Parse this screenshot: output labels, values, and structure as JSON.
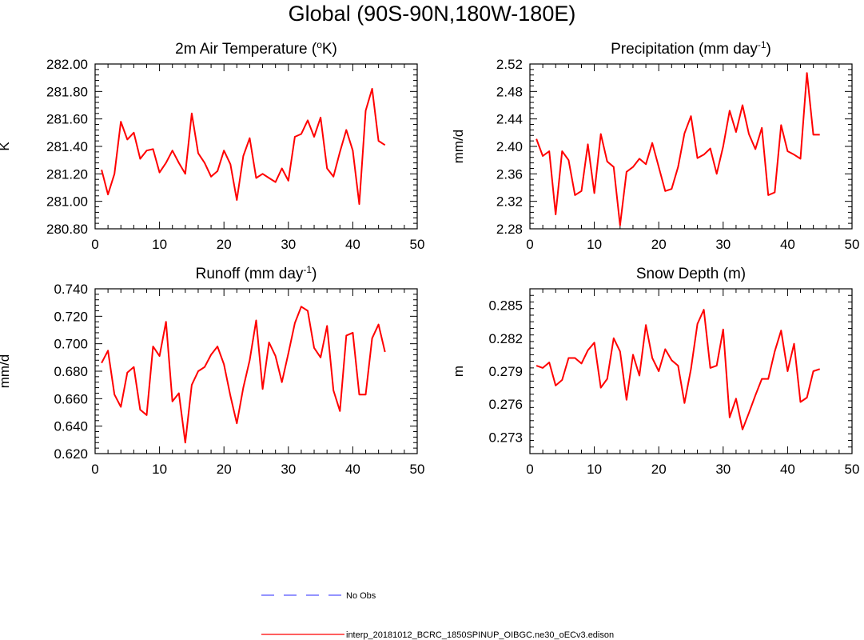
{
  "title": "Global (90S-90N,180W-180E)",
  "colors": {
    "model": "#ff0000",
    "obs": "#5555ff",
    "axis": "#000000"
  },
  "legend": [
    {
      "label": "No Obs",
      "style": "dashed",
      "color": "#5555ff"
    },
    {
      "label": "interp_20181012_BCRC_1850SPINUP_OIBGC.ne30_oECv3.edison",
      "style": "solid",
      "color": "#ff0000"
    }
  ],
  "chart_data": [
    {
      "type": "line",
      "title": "2m Air Temperature (",
      "title_sup": "o",
      "title_post": "K)",
      "ylabel": "K",
      "xlim": [
        0,
        50
      ],
      "ylim": [
        280.8,
        282.0
      ],
      "xticks": [
        0,
        10,
        20,
        30,
        40,
        50
      ],
      "yticks": [
        "280.80",
        "281.00",
        "281.20",
        "281.40",
        "281.60",
        "281.80",
        "282.00"
      ],
      "series": [
        {
          "color": "#ff0000",
          "x": [
            1,
            2,
            3,
            4,
            5,
            6,
            7,
            8,
            9,
            10,
            11,
            12,
            13,
            14,
            15,
            16,
            17,
            18,
            19,
            20,
            21,
            22,
            23,
            24,
            25,
            26,
            27,
            28,
            29,
            30,
            31,
            32,
            33,
            34,
            35,
            36,
            37,
            38,
            39,
            40,
            41,
            42,
            43,
            44,
            45
          ],
          "values": [
            281.23,
            281.05,
            281.2,
            281.58,
            281.45,
            281.5,
            281.31,
            281.37,
            281.38,
            281.21,
            281.28,
            281.37,
            281.28,
            281.2,
            281.64,
            281.35,
            281.28,
            281.18,
            281.22,
            281.37,
            281.27,
            281.01,
            281.33,
            281.46,
            281.17,
            281.2,
            281.17,
            281.14,
            281.24,
            281.15,
            281.47,
            281.49,
            281.59,
            281.47,
            281.61,
            281.24,
            281.18,
            281.36,
            281.52,
            281.37,
            280.98,
            281.66,
            281.82,
            281.44,
            281.41
          ]
        }
      ]
    },
    {
      "type": "line",
      "title": "Precipitation (mm day",
      "title_sup": "-1",
      "title_post": ")",
      "ylabel": "mm/d",
      "xlim": [
        0,
        50
      ],
      "ylim": [
        2.28,
        2.52
      ],
      "xticks": [
        0,
        10,
        20,
        30,
        40,
        50
      ],
      "yticks": [
        "2.28",
        "2.32",
        "2.36",
        "2.40",
        "2.44",
        "2.48",
        "2.52"
      ],
      "series": [
        {
          "color": "#ff0000",
          "x": [
            1,
            2,
            3,
            4,
            5,
            6,
            7,
            8,
            9,
            10,
            11,
            12,
            13,
            14,
            15,
            16,
            17,
            18,
            19,
            20,
            21,
            22,
            23,
            24,
            25,
            26,
            27,
            28,
            29,
            30,
            31,
            32,
            33,
            34,
            35,
            36,
            37,
            38,
            39,
            40,
            41,
            42,
            43,
            44,
            45
          ],
          "values": [
            2.411,
            2.386,
            2.393,
            2.301,
            2.393,
            2.38,
            2.329,
            2.335,
            2.403,
            2.332,
            2.418,
            2.378,
            2.37,
            2.285,
            2.363,
            2.37,
            2.382,
            2.374,
            2.405,
            2.37,
            2.335,
            2.338,
            2.37,
            2.419,
            2.444,
            2.383,
            2.388,
            2.397,
            2.36,
            2.4,
            2.452,
            2.421,
            2.46,
            2.418,
            2.396,
            2.427,
            2.329,
            2.333,
            2.431,
            2.393,
            2.388,
            2.382,
            2.507,
            2.417,
            2.417
          ]
        }
      ]
    },
    {
      "type": "line",
      "title": "Runoff (mm day",
      "title_sup": "-1",
      "title_post": ")",
      "ylabel": "mm/d",
      "xlim": [
        0,
        50
      ],
      "ylim": [
        0.62,
        0.74
      ],
      "xticks": [
        0,
        10,
        20,
        30,
        40,
        50
      ],
      "yticks": [
        "0.620",
        "0.640",
        "0.660",
        "0.680",
        "0.700",
        "0.720",
        "0.740"
      ],
      "series": [
        {
          "color": "#ff0000",
          "x": [
            1,
            2,
            3,
            4,
            5,
            6,
            7,
            8,
            9,
            10,
            11,
            12,
            13,
            14,
            15,
            16,
            17,
            18,
            19,
            20,
            21,
            22,
            23,
            24,
            25,
            26,
            27,
            28,
            29,
            30,
            31,
            32,
            33,
            34,
            35,
            36,
            37,
            38,
            39,
            40,
            41,
            42,
            43,
            44,
            45
          ],
          "values": [
            0.686,
            0.695,
            0.663,
            0.654,
            0.679,
            0.683,
            0.652,
            0.648,
            0.698,
            0.691,
            0.716,
            0.658,
            0.664,
            0.628,
            0.67,
            0.68,
            0.683,
            0.692,
            0.698,
            0.685,
            0.662,
            0.642,
            0.668,
            0.688,
            0.717,
            0.667,
            0.701,
            0.691,
            0.672,
            0.693,
            0.715,
            0.727,
            0.724,
            0.697,
            0.69,
            0.713,
            0.666,
            0.651,
            0.706,
            0.708,
            0.663,
            0.663,
            0.704,
            0.714,
            0.694
          ]
        }
      ]
    },
    {
      "type": "line",
      "title": "Snow Depth (m)",
      "title_sup": "",
      "title_post": "",
      "ylabel": "m",
      "xlim": [
        0,
        50
      ],
      "ylim": [
        0.2715,
        0.2865
      ],
      "xticks": [
        0,
        10,
        20,
        30,
        40,
        50
      ],
      "yticks": [
        "0.273",
        "0.276",
        "0.279",
        "0.282",
        "0.285"
      ],
      "yticks_values": [
        0.273,
        0.276,
        0.279,
        0.282,
        0.285
      ],
      "series": [
        {
          "color": "#ff0000",
          "x": [
            1,
            2,
            3,
            4,
            5,
            6,
            7,
            8,
            9,
            10,
            11,
            12,
            13,
            14,
            15,
            16,
            17,
            18,
            19,
            20,
            21,
            22,
            23,
            24,
            25,
            26,
            27,
            28,
            29,
            30,
            31,
            32,
            33,
            34,
            35,
            36,
            37,
            38,
            39,
            40,
            41,
            42,
            43,
            44,
            45
          ],
          "values": [
            0.2795,
            0.2793,
            0.2798,
            0.2777,
            0.2782,
            0.2802,
            0.2802,
            0.2797,
            0.2809,
            0.2816,
            0.2775,
            0.2783,
            0.282,
            0.2808,
            0.2764,
            0.2805,
            0.2786,
            0.2832,
            0.2802,
            0.279,
            0.281,
            0.28,
            0.2795,
            0.2761,
            0.2792,
            0.2833,
            0.2846,
            0.2793,
            0.2795,
            0.2828,
            0.2748,
            0.2765,
            0.2737,
            0.2752,
            0.2768,
            0.2783,
            0.2783,
            0.2808,
            0.2827,
            0.279,
            0.2815,
            0.2762,
            0.2766,
            0.279,
            0.2792
          ]
        }
      ]
    }
  ]
}
